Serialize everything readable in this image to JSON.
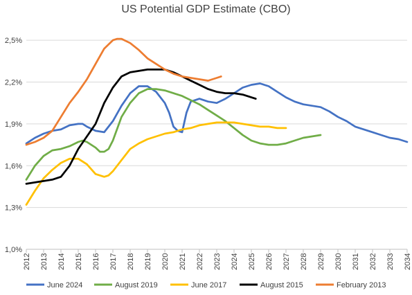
{
  "chart_data": {
    "type": "line",
    "title": "US Potential GDP Estimate (CBO)",
    "xlabel": "",
    "ylabel": "",
    "xlim": [
      2012,
      2034
    ],
    "ylim": [
      1.0,
      2.6
    ],
    "y_ticks": [
      "1,0%",
      "1,3%",
      "1,6%",
      "1,9%",
      "2,2%",
      "2,5%"
    ],
    "y_tick_values": [
      1.0,
      1.3,
      1.6,
      1.9,
      2.2,
      2.5
    ],
    "x_ticks": [
      "2012",
      "2013",
      "2014",
      "2015",
      "2016",
      "2017",
      "2018",
      "2019",
      "2020",
      "2021",
      "2022",
      "2023",
      "2024",
      "2025",
      "2026",
      "2027",
      "2028",
      "2029",
      "2030",
      "2031",
      "2032",
      "2033",
      "2034"
    ],
    "grid": "horizontal",
    "legend_position": "bottom",
    "series": [
      {
        "name": "June 2024",
        "color": "#4472C4",
        "points": [
          [
            2012,
            1.76
          ],
          [
            2012.5,
            1.8
          ],
          [
            2013,
            1.83
          ],
          [
            2013.5,
            1.85
          ],
          [
            2014,
            1.86
          ],
          [
            2014.5,
            1.89
          ],
          [
            2015,
            1.9
          ],
          [
            2015.25,
            1.9
          ],
          [
            2015.5,
            1.88
          ],
          [
            2016,
            1.85
          ],
          [
            2016.5,
            1.84
          ],
          [
            2017,
            1.92
          ],
          [
            2017.5,
            2.03
          ],
          [
            2018,
            2.12
          ],
          [
            2018.5,
            2.17
          ],
          [
            2019,
            2.17
          ],
          [
            2019.5,
            2.13
          ],
          [
            2020,
            2.05
          ],
          [
            2020.25,
            1.98
          ],
          [
            2020.5,
            1.88
          ],
          [
            2020.75,
            1.85
          ],
          [
            2021,
            1.84
          ],
          [
            2021.25,
            1.98
          ],
          [
            2021.5,
            2.06
          ],
          [
            2022,
            2.08
          ],
          [
            2022.5,
            2.06
          ],
          [
            2023,
            2.05
          ],
          [
            2023.5,
            2.08
          ],
          [
            2024,
            2.12
          ],
          [
            2024.5,
            2.16
          ],
          [
            2025,
            2.18
          ],
          [
            2025.5,
            2.19
          ],
          [
            2026,
            2.17
          ],
          [
            2026.5,
            2.13
          ],
          [
            2027,
            2.09
          ],
          [
            2027.5,
            2.06
          ],
          [
            2028,
            2.04
          ],
          [
            2028.5,
            2.03
          ],
          [
            2029,
            2.02
          ],
          [
            2029.5,
            1.99
          ],
          [
            2030,
            1.95
          ],
          [
            2030.5,
            1.92
          ],
          [
            2031,
            1.88
          ],
          [
            2031.5,
            1.86
          ],
          [
            2032,
            1.84
          ],
          [
            2032.5,
            1.82
          ],
          [
            2033,
            1.8
          ],
          [
            2033.5,
            1.79
          ],
          [
            2034,
            1.77
          ]
        ]
      },
      {
        "name": "August 2019",
        "color": "#70AD47",
        "points": [
          [
            2012,
            1.5
          ],
          [
            2012.5,
            1.6
          ],
          [
            2013,
            1.67
          ],
          [
            2013.5,
            1.71
          ],
          [
            2014,
            1.72
          ],
          [
            2014.5,
            1.74
          ],
          [
            2015,
            1.77
          ],
          [
            2015.25,
            1.78
          ],
          [
            2015.5,
            1.77
          ],
          [
            2016,
            1.73
          ],
          [
            2016.25,
            1.7
          ],
          [
            2016.5,
            1.7
          ],
          [
            2016.75,
            1.72
          ],
          [
            2017,
            1.78
          ],
          [
            2017.5,
            1.95
          ],
          [
            2018,
            2.05
          ],
          [
            2018.5,
            2.12
          ],
          [
            2019,
            2.15
          ],
          [
            2019.5,
            2.15
          ],
          [
            2020,
            2.14
          ],
          [
            2020.5,
            2.12
          ],
          [
            2021,
            2.1
          ],
          [
            2021.5,
            2.07
          ],
          [
            2022,
            2.04
          ],
          [
            2022.5,
            2.0
          ],
          [
            2023,
            1.96
          ],
          [
            2023.5,
            1.92
          ],
          [
            2024,
            1.87
          ],
          [
            2024.5,
            1.82
          ],
          [
            2025,
            1.78
          ],
          [
            2025.5,
            1.76
          ],
          [
            2026,
            1.75
          ],
          [
            2026.5,
            1.75
          ],
          [
            2027,
            1.76
          ],
          [
            2027.5,
            1.78
          ],
          [
            2028,
            1.8
          ],
          [
            2028.5,
            1.81
          ],
          [
            2029,
            1.82
          ]
        ]
      },
      {
        "name": "June 2017",
        "color": "#FFC000",
        "points": [
          [
            2012,
            1.32
          ],
          [
            2012.5,
            1.42
          ],
          [
            2013,
            1.51
          ],
          [
            2013.5,
            1.57
          ],
          [
            2014,
            1.62
          ],
          [
            2014.5,
            1.65
          ],
          [
            2015,
            1.65
          ],
          [
            2015.5,
            1.61
          ],
          [
            2016,
            1.54
          ],
          [
            2016.5,
            1.52
          ],
          [
            2016.75,
            1.53
          ],
          [
            2017,
            1.56
          ],
          [
            2017.5,
            1.64
          ],
          [
            2018,
            1.72
          ],
          [
            2018.5,
            1.76
          ],
          [
            2019,
            1.79
          ],
          [
            2019.5,
            1.81
          ],
          [
            2020,
            1.83
          ],
          [
            2020.5,
            1.84
          ],
          [
            2021,
            1.86
          ],
          [
            2021.5,
            1.87
          ],
          [
            2022,
            1.89
          ],
          [
            2022.5,
            1.9
          ],
          [
            2023,
            1.91
          ],
          [
            2023.5,
            1.91
          ],
          [
            2024,
            1.91
          ],
          [
            2024.5,
            1.9
          ],
          [
            2025,
            1.89
          ],
          [
            2025.5,
            1.88
          ],
          [
            2026,
            1.88
          ],
          [
            2026.5,
            1.87
          ],
          [
            2027,
            1.87
          ]
        ]
      },
      {
        "name": "August 2015",
        "color": "#000000",
        "points": [
          [
            2012,
            1.47
          ],
          [
            2012.5,
            1.48
          ],
          [
            2013,
            1.49
          ],
          [
            2013.5,
            1.5
          ],
          [
            2014,
            1.52
          ],
          [
            2014.5,
            1.6
          ],
          [
            2015,
            1.72
          ],
          [
            2015.5,
            1.81
          ],
          [
            2016,
            1.9
          ],
          [
            2016.5,
            2.05
          ],
          [
            2017,
            2.16
          ],
          [
            2017.5,
            2.24
          ],
          [
            2018,
            2.27
          ],
          [
            2018.5,
            2.28
          ],
          [
            2019,
            2.29
          ],
          [
            2019.5,
            2.29
          ],
          [
            2020,
            2.29
          ],
          [
            2020.5,
            2.27
          ],
          [
            2021,
            2.24
          ],
          [
            2021.5,
            2.21
          ],
          [
            2022,
            2.18
          ],
          [
            2022.5,
            2.15
          ],
          [
            2023,
            2.13
          ],
          [
            2023.5,
            2.12
          ],
          [
            2024,
            2.12
          ],
          [
            2024.5,
            2.11
          ],
          [
            2025,
            2.09
          ],
          [
            2025.25,
            2.08
          ]
        ]
      },
      {
        "name": "February 2013",
        "color": "#ED7D31",
        "points": [
          [
            2012,
            1.75
          ],
          [
            2012.5,
            1.77
          ],
          [
            2013,
            1.8
          ],
          [
            2013.5,
            1.85
          ],
          [
            2014,
            1.95
          ],
          [
            2014.5,
            2.05
          ],
          [
            2015,
            2.13
          ],
          [
            2015.5,
            2.22
          ],
          [
            2016,
            2.33
          ],
          [
            2016.5,
            2.44
          ],
          [
            2017,
            2.5
          ],
          [
            2017.25,
            2.51
          ],
          [
            2017.5,
            2.51
          ],
          [
            2018,
            2.48
          ],
          [
            2018.5,
            2.43
          ],
          [
            2019,
            2.37
          ],
          [
            2019.5,
            2.33
          ],
          [
            2020,
            2.29
          ],
          [
            2020.5,
            2.26
          ],
          [
            2021,
            2.24
          ],
          [
            2021.5,
            2.23
          ],
          [
            2022,
            2.22
          ],
          [
            2022.5,
            2.21
          ],
          [
            2023,
            2.23
          ],
          [
            2023.25,
            2.24
          ]
        ]
      }
    ]
  }
}
